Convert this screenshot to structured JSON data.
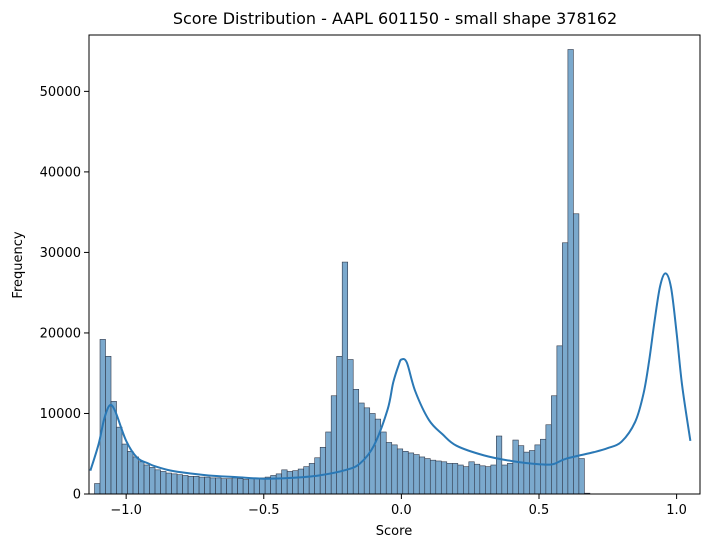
{
  "chart_data": {
    "type": "bar",
    "title": "Score Distribution - AAPL 601150 - small shape 378162",
    "xlabel": "Score",
    "ylabel": "Frequency",
    "xlim": [
      -1.135,
      1.085
    ],
    "ylim": [
      0,
      57000
    ],
    "xticks": [
      -1.0,
      -0.5,
      0.0,
      0.5,
      1.0
    ],
    "xtick_labels": [
      "−1.0",
      "−0.5",
      "0.0",
      "0.5",
      "1.0"
    ],
    "yticks": [
      0,
      10000,
      20000,
      30000,
      40000,
      50000
    ],
    "ytick_labels": [
      "0",
      "10000",
      "20000",
      "30000",
      "40000",
      "50000"
    ],
    "grid": false,
    "bin_start": -1.115,
    "bin_width": 0.02,
    "values": [
      1300,
      19200,
      17100,
      11500,
      8300,
      6200,
      5300,
      4600,
      4000,
      3600,
      3300,
      3000,
      2800,
      2600,
      2500,
      2400,
      2300,
      2200,
      2200,
      2100,
      2100,
      2000,
      2000,
      1900,
      1900,
      2000,
      1900,
      1800,
      1900,
      1900,
      2000,
      2100,
      2300,
      2500,
      3000,
      2800,
      2900,
      3100,
      3400,
      3800,
      4500,
      5800,
      7700,
      12200,
      17100,
      28800,
      16700,
      13000,
      11300,
      10700,
      10000,
      9300,
      7700,
      6400,
      6100,
      5600,
      5300,
      5100,
      4900,
      4600,
      4400,
      4200,
      4100,
      4000,
      3800,
      3800,
      3600,
      3400,
      4000,
      3700,
      3500,
      3400,
      3600,
      7200,
      3600,
      3800,
      6700,
      6000,
      5200,
      5400,
      6100,
      6800,
      8600,
      12200,
      18400,
      31200,
      55200,
      34800,
      4400,
      100
    ],
    "kde": {
      "x": [
        -1.13,
        -1.1,
        -1.08,
        -1.06,
        -1.04,
        -1.0,
        -0.96,
        -0.92,
        -0.9,
        -0.85,
        -0.8,
        -0.7,
        -0.6,
        -0.5,
        -0.4,
        -0.3,
        -0.2,
        -0.15,
        -0.1,
        -0.05,
        -0.03,
        -0.01,
        0.0,
        0.02,
        0.05,
        0.1,
        0.15,
        0.2,
        0.3,
        0.4,
        0.5,
        0.55,
        0.6,
        0.7,
        0.75,
        0.8,
        0.85,
        0.88,
        0.9,
        0.92,
        0.94,
        0.96,
        0.98,
        1.0,
        1.02,
        1.05
      ],
      "y": [
        2900,
        6200,
        9300,
        11000,
        10300,
        6600,
        4500,
        3800,
        3500,
        3000,
        2700,
        2300,
        2100,
        1900,
        2000,
        2300,
        3000,
        3800,
        6000,
        10500,
        13800,
        16000,
        16700,
        16300,
        12800,
        9200,
        7400,
        6000,
        4800,
        4100,
        3700,
        3700,
        4400,
        5200,
        5700,
        6500,
        9000,
        12500,
        16500,
        21500,
        25800,
        27400,
        25600,
        20000,
        13500,
        6600
      ]
    },
    "bar_fill": "#7ba9cd",
    "bar_edge": "#31394a",
    "line_color": "#2a78b5"
  }
}
